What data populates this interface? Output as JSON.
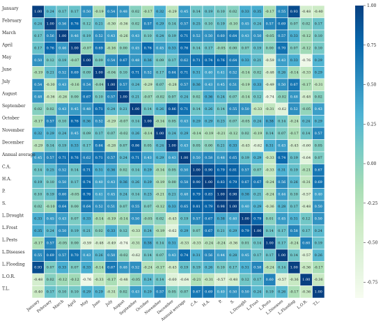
{
  "chart_data": {
    "type": "heatmap",
    "title": "",
    "labels": [
      "January",
      "February",
      "March",
      "April",
      "May",
      "June",
      "July",
      "August",
      "September",
      "October",
      "November",
      "December",
      "Annual average",
      "C.A.",
      "H.A.",
      "P.",
      "S.",
      "L.Drought",
      "L.Frost",
      "L.Pests",
      "L.Diseases",
      "L.Flooding",
      "L.O.R.",
      "T.L."
    ],
    "matrix": [
      [
        1.0,
        0.24,
        0.17,
        0.17,
        0.5,
        -0.19,
        0.54,
        0.48,
        0.02,
        -0.17,
        0.32,
        -0.29,
        0.45,
        0.14,
        0.19,
        0.1,
        0.02,
        0.33,
        0.35,
        -0.17,
        0.55,
        0.93,
        -0.48,
        -0.4
      ],
      [
        0.24,
        1.0,
        0.56,
        0.76,
        0.12,
        0.21,
        -0.3,
        -0.36,
        0.02,
        0.57,
        0.29,
        0.14,
        0.57,
        0.25,
        0.1,
        0.19,
        -0.1,
        0.45,
        0.24,
        0.57,
        0.69,
        0.07,
        0.02,
        0.17
      ],
      [
        0.17,
        0.56,
        1.0,
        0.46,
        0.19,
        0.52,
        0.43,
        -0.26,
        0.43,
        0.1,
        0.24,
        0.19,
        0.71,
        0.52,
        0.5,
        0.6,
        0.64,
        0.43,
        0.5,
        -0.05,
        0.57,
        0.33,
        -0.12,
        0.1
      ],
      [
        0.17,
        0.76,
        0.46,
        1.0,
        -0.07,
        0.69,
        -0.16,
        0.0,
        0.45,
        0.76,
        0.45,
        0.33,
        0.76,
        0.14,
        0.17,
        -0.05,
        0.0,
        0.07,
        0.19,
        0.0,
        0.7,
        0.07,
        -0.12,
        0.1
      ],
      [
        0.5,
        0.12,
        0.19,
        -0.07,
        1.0,
        0.09,
        0.54,
        0.67,
        0.48,
        0.36,
        0.09,
        0.17,
        0.62,
        0.71,
        0.74,
        0.76,
        0.64,
        0.33,
        0.21,
        -0.59,
        0.43,
        0.33,
        -0.76,
        0.29
      ],
      [
        -0.19,
        0.21,
        0.52,
        0.69,
        0.09,
        1.0,
        -0.04,
        0.1,
        0.71,
        0.52,
        0.17,
        0.64,
        0.71,
        0.31,
        0.4,
        0.41,
        0.52,
        -0.14,
        0.02,
        -0.48,
        0.26,
        -0.14,
        -0.33,
        0.29
      ],
      [
        0.54,
        -0.3,
        0.43,
        -0.16,
        0.54,
        -0.04,
        1.0,
        0.57,
        0.24,
        -0.29,
        0.07,
        -0.28,
        0.57,
        0.36,
        0.43,
        0.45,
        0.51,
        -0.19,
        0.33,
        -0.49,
        0.5,
        0.67,
        -0.17,
        -0.31
      ],
      [
        0.48,
        -0.36,
        -0.26,
        0.0,
        0.67,
        0.1,
        0.57,
        1.0,
        0.21,
        -0.07,
        -0.02,
        0.07,
        0.24,
        0.02,
        0.36,
        0.24,
        0.07,
        -0.14,
        0.12,
        -0.74,
        -0.02,
        0.48,
        -0.48,
        0.02
      ],
      [
        0.02,
        0.02,
        0.43,
        0.45,
        0.48,
        0.71,
        0.24,
        0.21,
        1.0,
        0.14,
        0.26,
        0.86,
        0.71,
        0.14,
        0.26,
        0.14,
        0.55,
        0.5,
        -0.33,
        -0.31,
        -0.62,
        0.52,
        -0.05,
        0.43
      ],
      [
        -0.17,
        0.57,
        0.1,
        0.76,
        0.36,
        0.52,
        -0.29,
        -0.07,
        0.14,
        1.0,
        -0.14,
        0.05,
        0.43,
        0.29,
        0.29,
        0.23,
        0.07,
        -0.05,
        0.24,
        0.38,
        0.14,
        -0.24,
        0.24,
        0.29
      ],
      [
        0.32,
        0.29,
        0.24,
        0.45,
        0.09,
        0.17,
        0.07,
        -0.02,
        0.26,
        -0.14,
        1.0,
        0.24,
        0.29,
        -0.14,
        -0.19,
        -0.21,
        -0.12,
        0.02,
        -0.19,
        0.14,
        0.07,
        -0.17,
        0.14,
        0.57
      ],
      [
        -0.29,
        0.14,
        0.19,
        0.33,
        0.17,
        0.64,
        -0.28,
        0.07,
        0.86,
        0.05,
        0.24,
        1.0,
        0.43,
        0.05,
        0.0,
        0.21,
        0.33,
        -0.43,
        -0.62,
        0.31,
        0.43,
        -0.43,
        -0.6,
        0.05
      ],
      [
        0.45,
        0.57,
        0.71,
        0.76,
        0.62,
        0.71,
        0.57,
        0.24,
        0.71,
        0.43,
        0.29,
        0.43,
        1.0,
        0.5,
        0.58,
        0.48,
        0.65,
        0.19,
        0.29,
        -0.33,
        0.74,
        0.19,
        -0.64,
        0.07
      ],
      [
        0.14,
        0.25,
        0.52,
        0.14,
        0.71,
        0.31,
        0.36,
        0.02,
        0.14,
        0.29,
        -0.14,
        0.05,
        0.5,
        1.0,
        0.9,
        0.79,
        0.81,
        0.57,
        0.07,
        -0.33,
        0.31,
        0.19,
        -0.21,
        0.67
      ],
      [
        0.19,
        0.1,
        0.5,
        0.17,
        0.74,
        0.4,
        0.43,
        0.36,
        0.26,
        0.29,
        -0.19,
        0.0,
        0.58,
        0.9,
        1.0,
        0.83,
        0.79,
        0.67,
        0.67,
        -0.24,
        0.56,
        0.26,
        -0.31,
        0.69
      ],
      [
        0.1,
        0.19,
        0.6,
        -0.05,
        0.76,
        0.41,
        0.45,
        0.24,
        0.14,
        0.23,
        -0.21,
        0.21,
        0.48,
        0.79,
        0.83,
        1.0,
        0.98,
        0.38,
        0.21,
        -0.24,
        0.44,
        0.1,
        -0.57,
        0.4
      ],
      [
        0.02,
        -0.1,
        0.64,
        0.0,
        0.64,
        0.52,
        0.51,
        0.07,
        0.55,
        0.07,
        -0.12,
        0.33,
        0.65,
        0.81,
        0.79,
        0.98,
        1.0,
        0.4,
        0.29,
        -0.36,
        0.28,
        0.17,
        -0.48,
        0.5
      ],
      [
        0.33,
        0.45,
        0.43,
        0.07,
        0.33,
        -0.14,
        -0.19,
        -0.14,
        0.5,
        -0.05,
        0.02,
        -0.43,
        0.19,
        0.57,
        0.67,
        0.38,
        0.4,
        1.0,
        0.79,
        0.01,
        0.45,
        0.31,
        0.12,
        0.5
      ],
      [
        0.35,
        0.24,
        0.5,
        0.19,
        0.21,
        0.02,
        0.33,
        0.12,
        -0.33,
        0.24,
        -0.19,
        -0.62,
        0.29,
        0.07,
        0.67,
        0.21,
        0.29,
        0.79,
        1.0,
        0.14,
        0.17,
        0.58,
        0.17,
        0.24
      ],
      [
        -0.17,
        0.57,
        -0.05,
        0.0,
        -0.59,
        -0.48,
        -0.49,
        -0.74,
        -0.31,
        0.38,
        0.14,
        0.31,
        -0.33,
        -0.33,
        -0.24,
        -0.24,
        -0.36,
        0.01,
        0.14,
        1.0,
        0.17,
        -0.24,
        0.6,
        0.19
      ],
      [
        0.55,
        0.69,
        0.57,
        0.7,
        0.43,
        0.26,
        0.5,
        -0.02,
        -0.62,
        0.14,
        0.07,
        0.43,
        0.74,
        0.31,
        0.56,
        0.44,
        0.28,
        0.45,
        0.17,
        0.17,
        1.0,
        0.14,
        -0.57,
        0.26
      ],
      [
        0.93,
        0.07,
        0.33,
        0.07,
        0.33,
        -0.14,
        0.67,
        0.48,
        0.52,
        -0.24,
        -0.17,
        -0.43,
        0.19,
        0.19,
        0.26,
        0.1,
        0.17,
        0.31,
        0.58,
        -0.24,
        0.14,
        1.0,
        -0.36,
        -0.17
      ],
      [
        -0.48,
        0.02,
        -0.12,
        -0.12,
        -0.76,
        -0.33,
        -0.17,
        -0.48,
        -0.05,
        0.24,
        0.14,
        -0.6,
        -0.64,
        -0.21,
        -0.31,
        -0.57,
        -0.48,
        0.12,
        0.17,
        0.6,
        -0.57,
        -0.36,
        1.0,
        -0.36
      ],
      [
        -0.4,
        0.17,
        0.1,
        0.1,
        0.29,
        0.29,
        -0.31,
        0.02,
        0.43,
        0.29,
        0.57,
        0.05,
        0.07,
        0.67,
        0.69,
        0.4,
        0.5,
        0.5,
        0.24,
        0.19,
        0.26,
        -0.17,
        -0.36,
        1.0
      ]
    ],
    "colorbar": {
      "colormap": "GnBu",
      "range": [
        -0.85,
        1.0
      ],
      "ticks": [
        "1.00",
        "0.75",
        "0.50",
        "0.25",
        "0.00",
        "-0.25",
        "-0.50",
        "-0.75"
      ]
    },
    "colors": {
      "low": "#f7fcf0",
      "mid": "#7bccc4",
      "high": "#084081"
    }
  }
}
